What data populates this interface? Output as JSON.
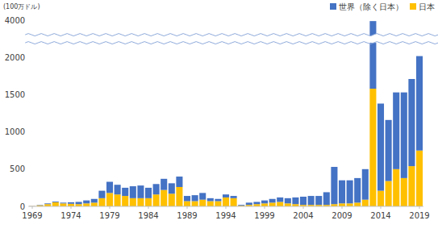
{
  "chart_data": {
    "type": "bar",
    "stacked": true,
    "y_label": "(100万ドル)",
    "categories": [
      "1969",
      null,
      null,
      null,
      null,
      "1974",
      null,
      null,
      null,
      null,
      "1979",
      null,
      null,
      null,
      null,
      "1984",
      null,
      null,
      null,
      null,
      "1989",
      null,
      null,
      null,
      null,
      "1994",
      null,
      null,
      null,
      null,
      "1999",
      null,
      null,
      null,
      null,
      "2004",
      null,
      null,
      null,
      null,
      "2009",
      null,
      null,
      null,
      null,
      "2014",
      null,
      null,
      null,
      null,
      "2019"
    ],
    "series": [
      {
        "name": "日本",
        "color": "#ffc000",
        "values": [
          3,
          15,
          30,
          55,
          40,
          35,
          30,
          40,
          50,
          110,
          180,
          160,
          140,
          110,
          110,
          110,
          160,
          220,
          170,
          260,
          70,
          70,
          90,
          70,
          70,
          120,
          110,
          10,
          20,
          30,
          40,
          50,
          60,
          40,
          30,
          20,
          20,
          20,
          20,
          30,
          40,
          40,
          50,
          90,
          1580,
          210,
          340,
          500,
          380,
          540,
          750
        ]
      },
      {
        "name": "世界（除く日本）",
        "color": "#4472c4",
        "values": [
          2,
          5,
          10,
          10,
          10,
          20,
          30,
          40,
          50,
          100,
          150,
          130,
          110,
          160,
          170,
          140,
          140,
          150,
          140,
          140,
          70,
          80,
          90,
          40,
          30,
          40,
          30,
          10,
          30,
          30,
          40,
          50,
          60,
          70,
          90,
          110,
          120,
          120,
          170,
          500,
          310,
          310,
          330,
          410,
          2370,
          1170,
          820,
          1030,
          1150,
          1170,
          1320
        ]
      }
    ],
    "ylim": [
      0,
      4000
    ],
    "yticks": [
      0,
      500,
      1000,
      1500,
      2000,
      4000
    ],
    "grid": false,
    "legend": "top-right"
  }
}
